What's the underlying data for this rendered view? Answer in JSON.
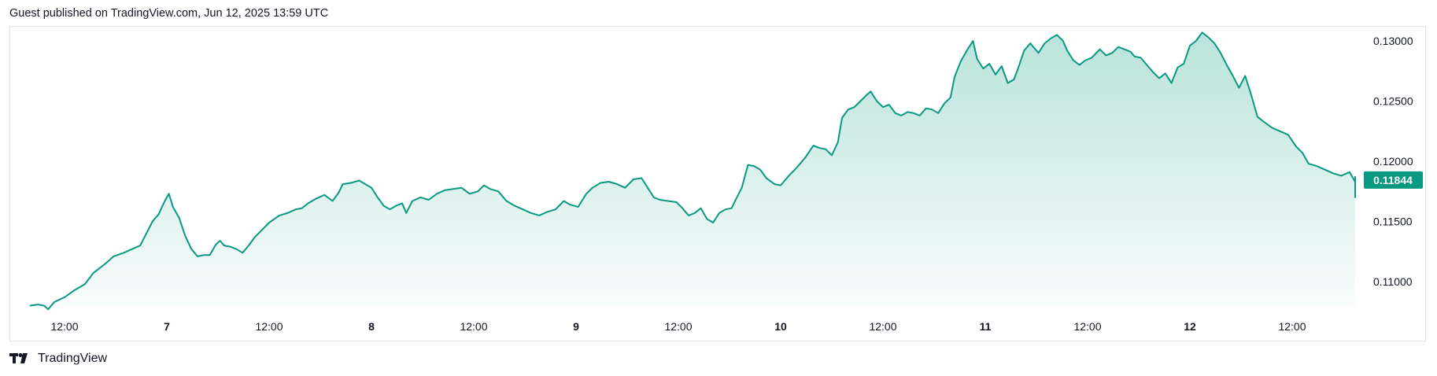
{
  "header": {
    "text": "Guest published on TradingView.com, Jun 12, 2025 13:59 UTC"
  },
  "footer": {
    "brand": "TradingView"
  },
  "colors": {
    "line": "#089981",
    "area_top": "#089981",
    "tag_bg": "#089981",
    "border": "#e0e3eb"
  },
  "chart_data": {
    "type": "area",
    "title": "",
    "xlabel": "",
    "ylabel": "",
    "grid": false,
    "last_value": "0.11844",
    "ylim": [
      0.107,
      0.131
    ],
    "y_ticks": [
      "0.13000",
      "0.12500",
      "0.12000",
      "0.11500",
      "0.11000"
    ],
    "x_ticks": [
      {
        "label": "12:00",
        "x": 0.5,
        "bold": false
      },
      {
        "label": "7",
        "x": 1.0,
        "bold": true
      },
      {
        "label": "12:00",
        "x": 1.5,
        "bold": false
      },
      {
        "label": "8",
        "x": 2.0,
        "bold": true
      },
      {
        "label": "12:00",
        "x": 2.5,
        "bold": false
      },
      {
        "label": "9",
        "x": 3.0,
        "bold": true
      },
      {
        "label": "12:00",
        "x": 3.5,
        "bold": false
      },
      {
        "label": "10",
        "x": 4.0,
        "bold": true
      },
      {
        "label": "12:00",
        "x": 4.5,
        "bold": false
      },
      {
        "label": "11",
        "x": 5.0,
        "bold": true
      },
      {
        "label": "12:00",
        "x": 5.5,
        "bold": false
      },
      {
        "label": "12",
        "x": 6.0,
        "bold": true
      },
      {
        "label": "12:00",
        "x": 6.5,
        "bold": false
      }
    ],
    "x_range": [
      0.33,
      6.88
    ],
    "series": [
      {
        "points": [
          [
            0.33,
            0.108
          ],
          [
            0.37,
            0.1081
          ],
          [
            0.4,
            0.108
          ],
          [
            0.42,
            0.1077
          ],
          [
            0.45,
            0.1083
          ],
          [
            0.5,
            0.1087
          ],
          [
            0.55,
            0.1093
          ],
          [
            0.6,
            0.1098
          ],
          [
            0.64,
            0.1107
          ],
          [
            0.67,
            0.1111
          ],
          [
            0.7,
            0.1115
          ],
          [
            0.74,
            0.1121
          ],
          [
            0.79,
            0.1124
          ],
          [
            0.83,
            0.1127
          ],
          [
            0.87,
            0.113
          ],
          [
            0.9,
            0.114
          ],
          [
            0.93,
            0.115
          ],
          [
            0.96,
            0.1156
          ],
          [
            0.99,
            0.1167
          ],
          [
            1.01,
            0.1173
          ],
          [
            1.03,
            0.1162
          ],
          [
            1.06,
            0.1153
          ],
          [
            1.09,
            0.1138
          ],
          [
            1.12,
            0.1127
          ],
          [
            1.15,
            0.1121
          ],
          [
            1.18,
            0.1122
          ],
          [
            1.21,
            0.1122
          ],
          [
            1.24,
            0.1131
          ],
          [
            1.26,
            0.1134
          ],
          [
            1.28,
            0.113
          ],
          [
            1.31,
            0.1129
          ],
          [
            1.34,
            0.1127
          ],
          [
            1.37,
            0.1124
          ],
          [
            1.4,
            0.113
          ],
          [
            1.43,
            0.1137
          ],
          [
            1.46,
            0.1142
          ],
          [
            1.5,
            0.1149
          ],
          [
            1.55,
            0.1155
          ],
          [
            1.59,
            0.1157
          ],
          [
            1.63,
            0.116
          ],
          [
            1.66,
            0.1161
          ],
          [
            1.69,
            0.1165
          ],
          [
            1.73,
            0.1169
          ],
          [
            1.77,
            0.1172
          ],
          [
            1.81,
            0.1167
          ],
          [
            1.84,
            0.1174
          ],
          [
            1.86,
            0.1181
          ],
          [
            1.9,
            0.1182
          ],
          [
            1.94,
            0.1184
          ],
          [
            1.97,
            0.1181
          ],
          [
            2.0,
            0.1178
          ],
          [
            2.03,
            0.117
          ],
          [
            2.06,
            0.1163
          ],
          [
            2.09,
            0.116
          ],
          [
            2.12,
            0.1163
          ],
          [
            2.15,
            0.1165
          ],
          [
            2.17,
            0.1157
          ],
          [
            2.2,
            0.1167
          ],
          [
            2.24,
            0.117
          ],
          [
            2.28,
            0.1168
          ],
          [
            2.32,
            0.1173
          ],
          [
            2.36,
            0.1176
          ],
          [
            2.4,
            0.1177
          ],
          [
            2.44,
            0.1178
          ],
          [
            2.48,
            0.1173
          ],
          [
            2.52,
            0.1175
          ],
          [
            2.55,
            0.118
          ],
          [
            2.58,
            0.1177
          ],
          [
            2.62,
            0.1175
          ],
          [
            2.66,
            0.1167
          ],
          [
            2.7,
            0.1163
          ],
          [
            2.74,
            0.116
          ],
          [
            2.78,
            0.1157
          ],
          [
            2.82,
            0.1155
          ],
          [
            2.86,
            0.1158
          ],
          [
            2.9,
            0.116
          ],
          [
            2.94,
            0.1167
          ],
          [
            2.97,
            0.1164
          ],
          [
            3.01,
            0.1162
          ],
          [
            3.05,
            0.1173
          ],
          [
            3.08,
            0.1178
          ],
          [
            3.12,
            0.1182
          ],
          [
            3.16,
            0.1183
          ],
          [
            3.2,
            0.1181
          ],
          [
            3.24,
            0.1178
          ],
          [
            3.28,
            0.1185
          ],
          [
            3.32,
            0.1186
          ],
          [
            3.35,
            0.1178
          ],
          [
            3.38,
            0.117
          ],
          [
            3.41,
            0.1168
          ],
          [
            3.45,
            0.1167
          ],
          [
            3.49,
            0.1166
          ],
          [
            3.52,
            0.1161
          ],
          [
            3.55,
            0.1155
          ],
          [
            3.58,
            0.1157
          ],
          [
            3.61,
            0.1161
          ],
          [
            3.64,
            0.1152
          ],
          [
            3.67,
            0.1149
          ],
          [
            3.7,
            0.1157
          ],
          [
            3.73,
            0.116
          ],
          [
            3.76,
            0.1161
          ],
          [
            3.78,
            0.1168
          ],
          [
            3.81,
            0.1178
          ],
          [
            3.84,
            0.1197
          ],
          [
            3.87,
            0.1196
          ],
          [
            3.9,
            0.1193
          ],
          [
            3.93,
            0.1186
          ],
          [
            3.97,
            0.1181
          ],
          [
            4.0,
            0.118
          ],
          [
            4.04,
            0.1188
          ],
          [
            4.08,
            0.1195
          ],
          [
            4.12,
            0.1203
          ],
          [
            4.16,
            0.1213
          ],
          [
            4.19,
            0.1211
          ],
          [
            4.22,
            0.121
          ],
          [
            4.25,
            0.1205
          ],
          [
            4.28,
            0.1216
          ],
          [
            4.3,
            0.1236
          ],
          [
            4.33,
            0.1243
          ],
          [
            4.36,
            0.1245
          ],
          [
            4.39,
            0.125
          ],
          [
            4.42,
            0.1255
          ],
          [
            4.44,
            0.1258
          ],
          [
            4.47,
            0.125
          ],
          [
            4.5,
            0.1245
          ],
          [
            4.53,
            0.1247
          ],
          [
            4.56,
            0.124
          ],
          [
            4.59,
            0.1238
          ],
          [
            4.62,
            0.1241
          ],
          [
            4.65,
            0.124
          ],
          [
            4.68,
            0.1238
          ],
          [
            4.71,
            0.1244
          ],
          [
            4.74,
            0.1243
          ],
          [
            4.77,
            0.124
          ],
          [
            4.8,
            0.1248
          ],
          [
            4.83,
            0.1253
          ],
          [
            4.85,
            0.127
          ],
          [
            4.88,
            0.1283
          ],
          [
            4.91,
            0.1292
          ],
          [
            4.94,
            0.13
          ],
          [
            4.96,
            0.1285
          ],
          [
            4.99,
            0.1277
          ],
          [
            5.02,
            0.1281
          ],
          [
            5.05,
            0.1272
          ],
          [
            5.08,
            0.1279
          ],
          [
            5.11,
            0.1265
          ],
          [
            5.14,
            0.1268
          ],
          [
            5.16,
            0.1277
          ],
          [
            5.19,
            0.1292
          ],
          [
            5.22,
            0.1298
          ],
          [
            5.26,
            0.129
          ],
          [
            5.29,
            0.1298
          ],
          [
            5.32,
            0.1302
          ],
          [
            5.35,
            0.1305
          ],
          [
            5.38,
            0.13
          ],
          [
            5.4,
            0.1292
          ],
          [
            5.43,
            0.1284
          ],
          [
            5.46,
            0.128
          ],
          [
            5.49,
            0.1284
          ],
          [
            5.52,
            0.1286
          ],
          [
            5.56,
            0.1293
          ],
          [
            5.59,
            0.1288
          ],
          [
            5.62,
            0.129
          ],
          [
            5.65,
            0.1295
          ],
          [
            5.68,
            0.1293
          ],
          [
            5.71,
            0.1291
          ],
          [
            5.73,
            0.1287
          ],
          [
            5.76,
            0.1286
          ],
          [
            5.79,
            0.128
          ],
          [
            5.82,
            0.1274
          ],
          [
            5.85,
            0.1269
          ],
          [
            5.88,
            0.1273
          ],
          [
            5.91,
            0.1265
          ],
          [
            5.94,
            0.1278
          ],
          [
            5.97,
            0.1281
          ],
          [
            6.0,
            0.1296
          ],
          [
            6.03,
            0.13
          ],
          [
            6.06,
            0.1307
          ],
          [
            6.09,
            0.1303
          ],
          [
            6.12,
            0.1298
          ],
          [
            6.15,
            0.129
          ],
          [
            6.18,
            0.128
          ],
          [
            6.21,
            0.1271
          ],
          [
            6.24,
            0.1261
          ],
          [
            6.27,
            0.1271
          ],
          [
            6.3,
            0.1255
          ],
          [
            6.33,
            0.1237
          ],
          [
            6.36,
            0.1233
          ],
          [
            6.4,
            0.1228
          ],
          [
            6.44,
            0.1225
          ],
          [
            6.48,
            0.1222
          ],
          [
            6.52,
            0.1212
          ],
          [
            6.55,
            0.1207
          ],
          [
            6.58,
            0.1198
          ],
          [
            6.62,
            0.1196
          ],
          [
            6.66,
            0.1193
          ],
          [
            6.7,
            0.119
          ],
          [
            6.74,
            0.1188
          ],
          [
            6.78,
            0.1191
          ],
          [
            6.81,
            0.1183
          ],
          [
            6.84,
            0.118
          ],
          [
            6.86,
            0.1175
          ],
          [
            6.89,
            0.117
          ],
          [
            6.92,
            0.118
          ],
          [
            6.95,
            0.1184
          ],
          [
            6.98,
            0.1187
          ],
          [
            7.0,
            0.1184
          ]
        ]
      }
    ]
  }
}
